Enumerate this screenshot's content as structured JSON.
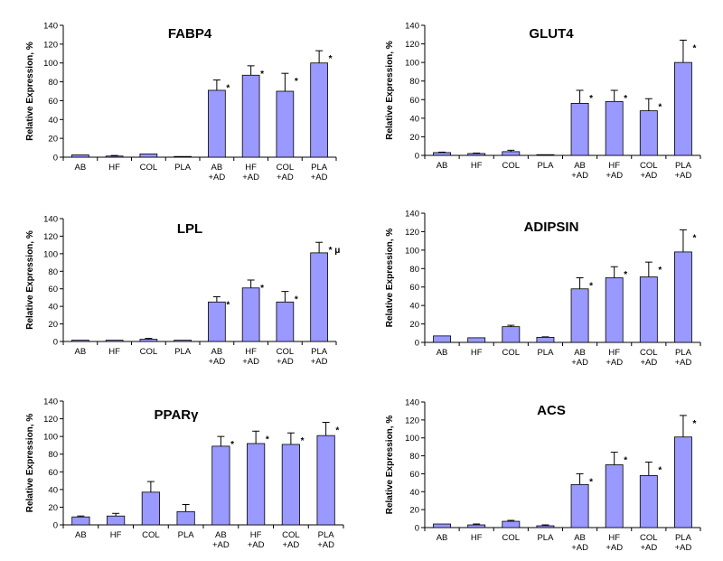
{
  "chart_data": [
    {
      "type": "bar",
      "title": "FABP4",
      "ylabel": "Relative Expression, %",
      "ylim": [
        0,
        140
      ],
      "yticks": [
        0,
        20,
        40,
        60,
        80,
        100,
        120,
        140
      ],
      "categories": [
        [
          "AB"
        ],
        [
          "HF"
        ],
        [
          "COL"
        ],
        [
          "PLA"
        ],
        [
          "AB",
          "+AD"
        ],
        [
          "HF",
          "+AD"
        ],
        [
          "COL",
          "+AD"
        ],
        [
          "PLA",
          "+AD"
        ]
      ],
      "values": [
        2.5,
        1.2,
        3.5,
        0.3,
        71,
        87,
        70,
        100
      ],
      "errors": [
        0,
        0.6,
        0,
        0,
        11,
        10,
        19,
        13
      ],
      "annotations": [
        "",
        "",
        "",
        "",
        "*",
        "*",
        "*",
        "*"
      ],
      "bar_color": "#9999ff"
    },
    {
      "type": "bar",
      "title": "GLUT4",
      "ylabel": "Relative Expression, %",
      "ylim": [
        0,
        140
      ],
      "yticks": [
        0,
        20,
        40,
        60,
        80,
        100,
        120,
        140
      ],
      "categories": [
        [
          "AB"
        ],
        [
          "HF"
        ],
        [
          "COL"
        ],
        [
          "PLA"
        ],
        [
          "AB",
          "+AD"
        ],
        [
          "HF",
          "+AD"
        ],
        [
          "COL",
          "+AD"
        ],
        [
          "PLA",
          "+AD"
        ]
      ],
      "values": [
        3,
        2,
        4,
        0.5,
        56,
        58,
        48,
        100
      ],
      "errors": [
        0.5,
        0.5,
        1.5,
        0,
        14,
        12,
        13,
        24
      ],
      "annotations": [
        "",
        "",
        "",
        "",
        "*",
        "*",
        "*",
        "*"
      ],
      "bar_color": "#9999ff"
    },
    {
      "type": "bar",
      "title": "LPL",
      "ylabel": "Relative Expression, %",
      "ylim": [
        0,
        140
      ],
      "yticks": [
        0,
        20,
        40,
        60,
        80,
        100,
        120,
        140
      ],
      "categories": [
        [
          "AB"
        ],
        [
          "HF"
        ],
        [
          "COL"
        ],
        [
          "PLA"
        ],
        [
          "AB",
          "+AD"
        ],
        [
          "HF",
          "+AD"
        ],
        [
          "COL",
          "+AD"
        ],
        [
          "PLA",
          "+AD"
        ]
      ],
      "values": [
        1.5,
        1.5,
        2.5,
        1.5,
        45,
        61,
        45,
        101
      ],
      "errors": [
        0,
        0,
        1,
        0,
        6,
        9,
        12,
        12
      ],
      "annotations": [
        "",
        "",
        "",
        "",
        "*",
        "*",
        "*",
        "* μ"
      ],
      "bar_color": "#9999ff"
    },
    {
      "type": "bar",
      "title": "ADIPSIN",
      "ylabel": "Relative Expression, %",
      "ylim": [
        0,
        140
      ],
      "yticks": [
        0,
        20,
        40,
        60,
        80,
        100,
        120,
        140
      ],
      "categories": [
        [
          "AB"
        ],
        [
          "HF"
        ],
        [
          "COL"
        ],
        [
          "PLA"
        ],
        [
          "AB",
          "+AD"
        ],
        [
          "HF",
          "+AD"
        ],
        [
          "COL",
          "+AD"
        ],
        [
          "PLA",
          "+AD"
        ]
      ],
      "values": [
        7,
        5,
        17,
        5.5,
        58,
        70,
        71,
        98
      ],
      "errors": [
        0,
        0,
        1.5,
        0.5,
        12,
        12,
        16,
        24
      ],
      "annotations": [
        "",
        "",
        "",
        "",
        "*",
        "*",
        "*",
        "*"
      ],
      "bar_color": "#9999ff"
    },
    {
      "type": "bar",
      "title": "PPARγ",
      "ylabel": "Relative Expression, %",
      "ylim": [
        0,
        140
      ],
      "yticks": [
        0,
        20,
        40,
        60,
        80,
        100,
        120,
        140
      ],
      "categories": [
        [
          "AB"
        ],
        [
          "HF"
        ],
        [
          "COL"
        ],
        [
          "PLA"
        ],
        [
          "AB",
          "+AD"
        ],
        [
          "HF",
          "+AD"
        ],
        [
          "COL",
          "+AD"
        ],
        [
          "PLA",
          "+AD"
        ]
      ],
      "values": [
        9,
        10,
        37,
        15,
        89,
        92,
        91,
        101
      ],
      "errors": [
        1,
        3,
        12,
        8,
        11,
        14,
        13,
        15
      ],
      "annotations": [
        "",
        "",
        "",
        "",
        "*",
        "*",
        "*",
        "*"
      ],
      "bar_color": "#9999ff"
    },
    {
      "type": "bar",
      "title": "ACS",
      "ylabel": "Relative Expression, %",
      "ylim": [
        0,
        140
      ],
      "yticks": [
        0,
        20,
        40,
        60,
        80,
        100,
        120,
        140
      ],
      "categories": [
        [
          "AB"
        ],
        [
          "HF"
        ],
        [
          "COL"
        ],
        [
          "PLA"
        ],
        [
          "AB",
          "+AD"
        ],
        [
          "HF",
          "+AD"
        ],
        [
          "COL",
          "+AD"
        ],
        [
          "PLA",
          "+AD"
        ]
      ],
      "values": [
        4,
        3,
        7,
        2,
        48,
        70,
        58,
        101
      ],
      "errors": [
        0,
        1,
        1,
        1,
        12,
        14,
        15,
        24
      ],
      "annotations": [
        "",
        "",
        "",
        "",
        "*",
        "*",
        "*",
        "*"
      ],
      "bar_color": "#9999ff"
    }
  ]
}
